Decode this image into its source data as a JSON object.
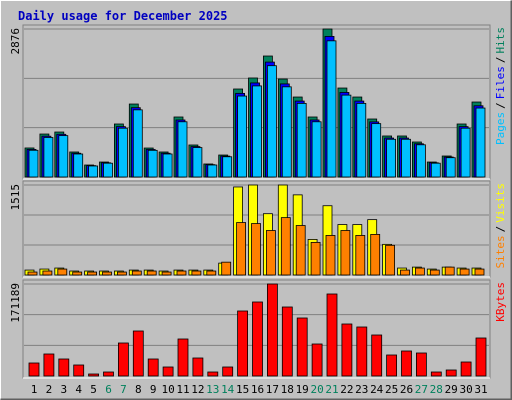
{
  "title": "Daily usage for December 2025",
  "legend_separator": "/",
  "categories": [
    "1",
    "2",
    "3",
    "4",
    "5",
    "6",
    "7",
    "8",
    "9",
    "10",
    "11",
    "12",
    "13",
    "14",
    "15",
    "16",
    "17",
    "18",
    "19",
    "20",
    "21",
    "22",
    "23",
    "24",
    "25",
    "26",
    "27",
    "28",
    "29",
    "30",
    "31"
  ],
  "category_color": "#000000",
  "highlight": {
    "color": "#00805c",
    "indices": [
      5,
      6,
      12,
      13,
      19,
      20,
      26,
      27
    ]
  },
  "chart_data": [
    {
      "type": "bar",
      "ylim": [
        0,
        2876
      ],
      "yticks": [
        2876
      ],
      "grid": true,
      "series": [
        {
          "name": "Hits",
          "color": "#00805c",
          "values": [
            564,
            835,
            874,
            486,
            233,
            291,
            1030,
            1418,
            563,
            486,
            1166,
            622,
            253,
            427,
            1710,
            1924,
            2351,
            1904,
            1554,
            1166,
            2876,
            1729,
            1554,
            1127,
            797,
            797,
            680,
            291,
            408,
            1030,
            1457
          ]
        },
        {
          "name": "Files",
          "color": "#0000ff",
          "values": [
            536,
            793,
            830,
            462,
            221,
            276,
            979,
            1347,
            535,
            462,
            1108,
            591,
            240,
            406,
            1625,
            1828,
            2233,
            1809,
            1476,
            1108,
            2732,
            1643,
            1476,
            1071,
            757,
            757,
            646,
            276,
            388,
            979,
            1384
          ]
        },
        {
          "name": "Pages",
          "color": "#00c0ff",
          "values": [
            519,
            768,
            804,
            447,
            214,
            268,
            948,
            1305,
            518,
            447,
            1073,
            572,
            233,
            393,
            1573,
            1770,
            2163,
            1752,
            1430,
            1073,
            2646,
            1591,
            1430,
            1037,
            733,
            733,
            626,
            268,
            375,
            948,
            1340
          ]
        }
      ]
    },
    {
      "type": "bar",
      "ylim": [
        0,
        1515
      ],
      "yticks": [
        1515
      ],
      "grid": true,
      "series": [
        {
          "name": "Visits",
          "color": "#ffff00",
          "values": [
            83,
            100,
            117,
            67,
            67,
            67,
            67,
            83,
            83,
            67,
            83,
            83,
            83,
            200,
            1482,
            1515,
            1032,
            1515,
            1349,
            599,
            1166,
            849,
            849,
            932,
            516,
            117,
            133,
            100,
            133,
            117,
            117
          ]
        },
        {
          "name": "Sites",
          "color": "#ff8000",
          "values": [
            50,
            67,
            100,
            50,
            50,
            50,
            50,
            67,
            67,
            50,
            67,
            67,
            67,
            216,
            883,
            866,
            749,
            966,
            833,
            549,
            666,
            749,
            666,
            683,
            500,
            83,
            117,
            83,
            133,
            100,
            100
          ]
        }
      ]
    },
    {
      "type": "bar",
      "ylim": [
        0,
        171189
      ],
      "yticks": [
        171189
      ],
      "grid": true,
      "series": [
        {
          "name": "KBytes",
          "color": "#ff0000",
          "values": [
            24190,
            40940,
            31640,
            20470,
            3720,
            7440,
            61410,
            83740,
            31640,
            16750,
            68850,
            33500,
            7440,
            16750,
            120960,
            137710,
            171189,
            128400,
            107930,
            59550,
            152590,
            96770,
            91180,
            76300,
            39080,
            46520,
            42800,
            7440,
            11170,
            26050,
            70710
          ]
        }
      ]
    }
  ]
}
